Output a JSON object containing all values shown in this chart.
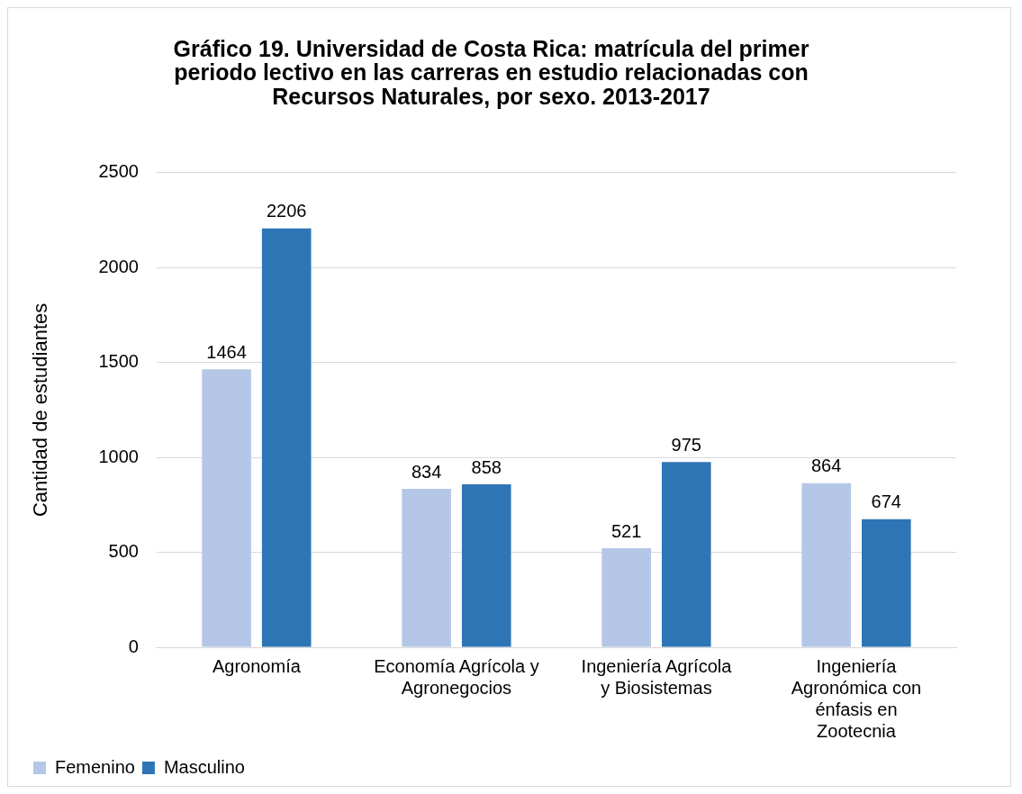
{
  "chart_data": {
    "type": "bar",
    "title": "Gráfico 19. Universidad de Costa Rica: matrícula del primer periodo lectivo en las carreras en estudio relacionadas con Recursos Naturales, por sexo. 2013-2017",
    "ylabel": "Cantidad de estudiantes",
    "categories": [
      "Agronomía",
      "Economía Agrícola y Agronegocios",
      "Ingeniería Agrícola y Biosistemas",
      "Ingeniería Agronómica con énfasis en Zootecnia"
    ],
    "series": [
      {
        "name": "Femenino",
        "color": "#b4c7e7",
        "values": [
          1464,
          834,
          521,
          864
        ]
      },
      {
        "name": "Masculino",
        "color": "#2e75b6",
        "values": [
          2206,
          858,
          975,
          674
        ]
      }
    ],
    "ylim": [
      0,
      2500
    ],
    "yticks": [
      0,
      500,
      1000,
      1500,
      2000,
      2500
    ],
    "grid": "y",
    "legend": "bottom",
    "data_labels": true
  }
}
